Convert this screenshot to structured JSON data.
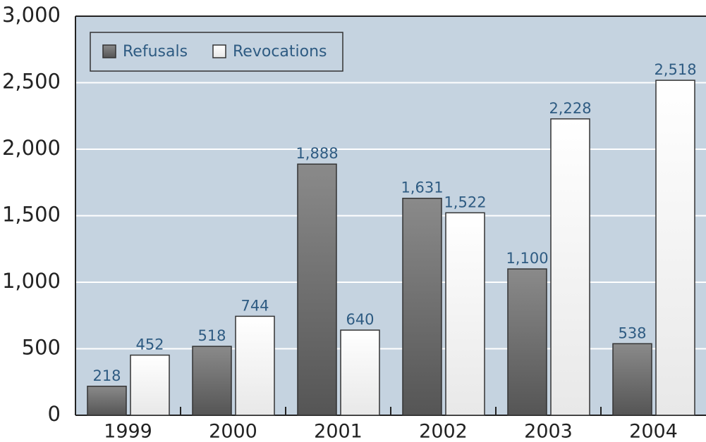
{
  "chart_data": {
    "type": "bar",
    "categories": [
      "1999",
      "2000",
      "2001",
      "2002",
      "2003",
      "2004"
    ],
    "series": [
      {
        "name": "Refusals",
        "color": "#6e6e6e",
        "values": [
          218,
          518,
          1888,
          1631,
          1100,
          538
        ],
        "value_labels": [
          "218",
          "518",
          "1,888",
          "1,631",
          "1,100",
          "538"
        ]
      },
      {
        "name": "Revocations",
        "color": "#ffffff",
        "values": [
          452,
          744,
          640,
          1522,
          2228,
          2518
        ],
        "value_labels": [
          "452",
          "744",
          "640",
          "1,522",
          "2,228",
          "2,518"
        ]
      }
    ],
    "ylim": [
      0,
      3000
    ],
    "yticks": [
      0,
      500,
      {
        "value": 1000,
        "label": "1,000"
      },
      {
        "value": 1500,
        "label": "1,500"
      },
      {
        "value": 2000,
        "label": "2,000"
      },
      {
        "value": 2500,
        "label": "2,500"
      },
      {
        "value": 3000,
        "label": "3,000"
      }
    ],
    "grid": true,
    "legend": "top-left"
  }
}
